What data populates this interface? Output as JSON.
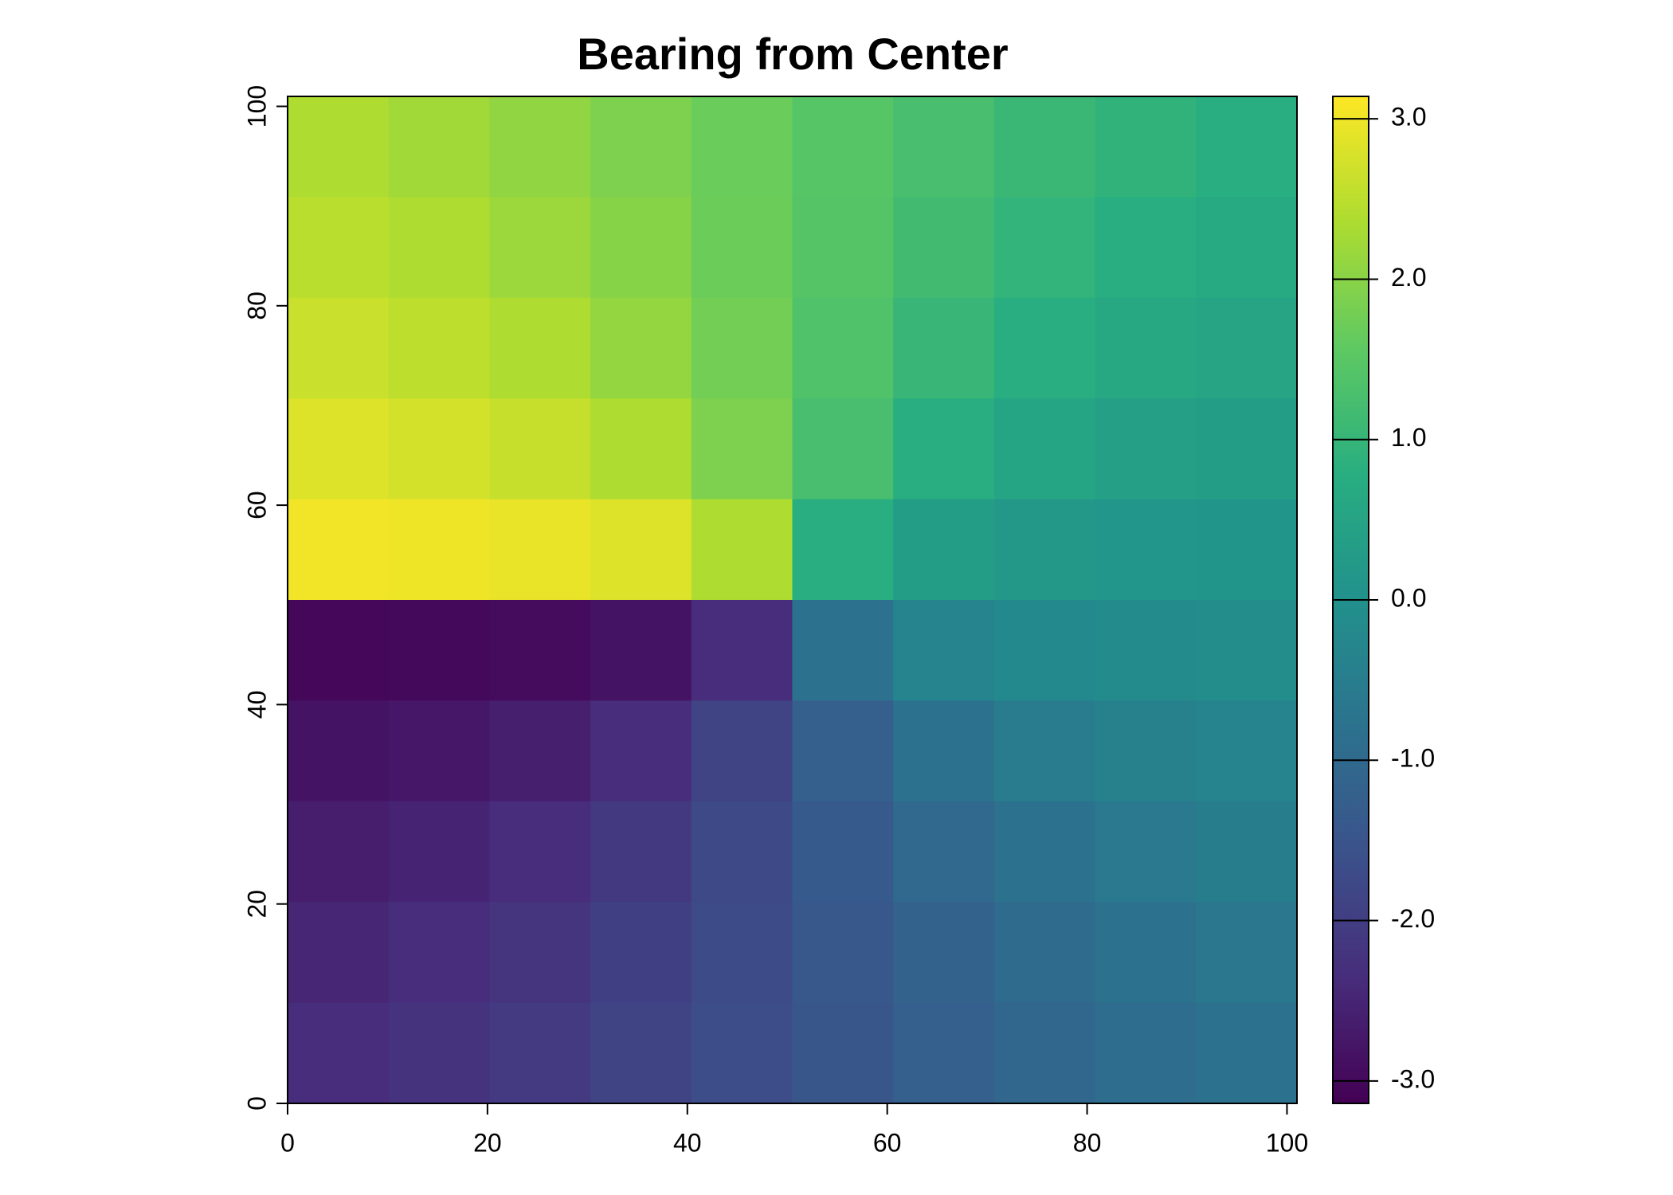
{
  "chart_data": {
    "type": "heatmap",
    "title": "Bearing from Center",
    "xlim": [
      0,
      101
    ],
    "ylim": [
      0,
      101
    ],
    "xticks": [
      0,
      20,
      40,
      60,
      80,
      100
    ],
    "yticks": [
      0,
      20,
      40,
      60,
      80,
      100
    ],
    "z": [
      [
        2.36,
        2.23,
        2.08,
        1.89,
        1.68,
        1.46,
        1.25,
        1.06,
        0.91,
        0.79
      ],
      [
        2.48,
        2.36,
        2.19,
        1.98,
        1.71,
        1.43,
        1.17,
        0.95,
        0.79,
        0.66
      ],
      [
        2.63,
        2.52,
        2.36,
        2.11,
        1.77,
        1.37,
        1.03,
        0.79,
        0.62,
        0.51
      ],
      [
        2.82,
        2.74,
        2.6,
        2.36,
        1.89,
        1.25,
        0.79,
        0.54,
        0.41,
        0.32
      ],
      [
        3.03,
        3.0,
        2.94,
        2.82,
        2.36,
        0.79,
        0.32,
        0.2,
        0.14,
        0.11
      ],
      [
        -3.03,
        -3.0,
        -2.94,
        -2.82,
        -2.36,
        -0.79,
        -0.32,
        -0.2,
        -0.14,
        -0.11
      ],
      [
        -2.82,
        -2.74,
        -2.6,
        -2.36,
        -1.89,
        -1.25,
        -0.79,
        -0.54,
        -0.41,
        -0.32
      ],
      [
        -2.63,
        -2.52,
        -2.36,
        -2.11,
        -1.77,
        -1.37,
        -1.03,
        -0.79,
        -0.62,
        -0.51
      ],
      [
        -2.48,
        -2.36,
        -2.19,
        -1.98,
        -1.71,
        -1.43,
        -1.17,
        -0.95,
        -0.79,
        -0.66
      ],
      [
        -2.36,
        -2.23,
        -2.08,
        -1.89,
        -1.68,
        -1.46,
        -1.25,
        -1.06,
        -0.91,
        -0.79
      ]
    ],
    "zlim": [
      -3.14,
      3.14
    ],
    "zticks": [
      {
        "value": -3,
        "label": "-3.0"
      },
      {
        "value": -2,
        "label": "-2.0"
      },
      {
        "value": -1,
        "label": "-1.0"
      },
      {
        "value": 0,
        "label": "0.0"
      },
      {
        "value": 1,
        "label": "1.0"
      },
      {
        "value": 2,
        "label": "2.0"
      },
      {
        "value": 3,
        "label": "3.0"
      }
    ],
    "colormap": [
      "#440154",
      "#472d7b",
      "#3b528b",
      "#2c728e",
      "#21918c",
      "#28ae80",
      "#5ec962",
      "#addc30",
      "#fde725"
    ]
  }
}
